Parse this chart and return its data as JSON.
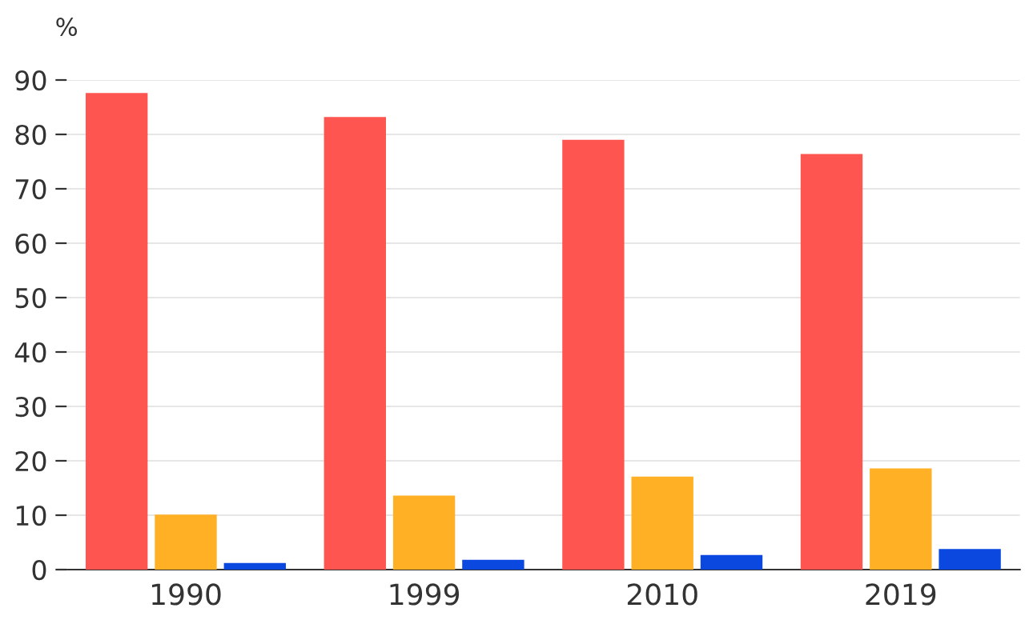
{
  "chart_data": {
    "type": "bar",
    "ylabel": "%",
    "categories": [
      "1990",
      "1999",
      "2010",
      "2019"
    ],
    "series": [
      {
        "color": "#ff5550",
        "values": [
          87.6,
          83.2,
          79.0,
          76.4
        ]
      },
      {
        "color": "#ffb024",
        "values": [
          10.1,
          13.6,
          17.1,
          18.6
        ]
      },
      {
        "color": "#0a48e0",
        "values": [
          1.2,
          1.8,
          2.7,
          3.8
        ]
      }
    ],
    "ylim": [
      0,
      90
    ],
    "yticks": [
      0,
      10,
      20,
      30,
      40,
      50,
      60,
      70,
      80,
      90
    ],
    "grid": "y"
  }
}
